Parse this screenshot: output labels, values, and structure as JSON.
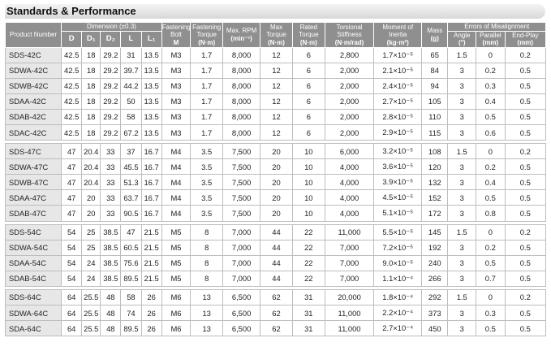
{
  "title": "Standards & Performance",
  "headers": {
    "product_number": "Product Number",
    "dimension": "Dimension (±0.3)",
    "d": "D",
    "d1": "D₁",
    "d2": "D₂",
    "l": "L",
    "l1": "L₁",
    "fastening_bolt": "Fastening Bolt",
    "fastening_bolt_unit": "M",
    "fastening_torque": "Fastening Torque",
    "fastening_torque_unit": "(N·m)",
    "max_rpm": "Max. RPM",
    "max_rpm_unit": "(min⁻¹)",
    "max_torque": "Max Torque",
    "max_torque_unit": "(N·m)",
    "rated_torque": "Rated Torque",
    "rated_torque_unit": "(N·m)",
    "torsional_stiffness": "Torsional Stiffness",
    "torsional_stiffness_unit": "(N·m/rad)",
    "moment_of_inertia": "Moment of Inertia",
    "moment_of_inertia_unit": "(kg·m²)",
    "mass": "Mass",
    "mass_unit": "(g)",
    "errors": "Errors of Misalignment",
    "angle": "Angle",
    "angle_unit": "(°)",
    "parallel": "Parallel",
    "parallel_unit": "(mm)",
    "end_play": "End-Play",
    "end_play_unit": "(mm)"
  },
  "groups": [
    {
      "rows": [
        [
          "SDS-42C",
          "42.5",
          "18",
          "29.2",
          "31",
          "13.5",
          "M3",
          "1.7",
          "8,000",
          "12",
          "6",
          "2,800",
          "1.7×10⁻⁵",
          "65",
          "1.5",
          "0",
          "0.2"
        ],
        [
          "SDWA-42C",
          "42.5",
          "18",
          "29.2",
          "39.7",
          "13.5",
          "M3",
          "1.7",
          "8,000",
          "12",
          "6",
          "2,000",
          "2.1×10⁻⁵",
          "84",
          "3",
          "0.2",
          "0.5"
        ],
        [
          "SDWB-42C",
          "42.5",
          "18",
          "29.2",
          "44.2",
          "13.5",
          "M3",
          "1.7",
          "8,000",
          "12",
          "6",
          "2,000",
          "2.4×10⁻⁵",
          "94",
          "3",
          "0.3",
          "0.5"
        ],
        [
          "SDAA-42C",
          "42.5",
          "18",
          "29.2",
          "50",
          "13.5",
          "M3",
          "1.7",
          "8,000",
          "12",
          "6",
          "2,000",
          "2.7×10⁻⁵",
          "105",
          "3",
          "0.4",
          "0.5"
        ],
        [
          "SDAB-42C",
          "42.5",
          "18",
          "29.2",
          "58",
          "13.5",
          "M3",
          "1.7",
          "8,000",
          "12",
          "6",
          "2,000",
          "2.8×10⁻⁵",
          "110",
          "3",
          "0.5",
          "0.5"
        ],
        [
          "SDAC-42C",
          "42.5",
          "18",
          "29.2",
          "67.2",
          "13.5",
          "M3",
          "1.7",
          "8,000",
          "12",
          "6",
          "2,000",
          "2.9×10⁻⁵",
          "115",
          "3",
          "0.6",
          "0.5"
        ]
      ]
    },
    {
      "rows": [
        [
          "SDS-47C",
          "47",
          "20.4",
          "33",
          "37",
          "16.7",
          "M4",
          "3.5",
          "7,500",
          "20",
          "10",
          "6,000",
          "3.2×10⁻⁵",
          "108",
          "1.5",
          "0",
          "0.2"
        ],
        [
          "SDWA-47C",
          "47",
          "20.4",
          "33",
          "45.5",
          "16.7",
          "M4",
          "3.5",
          "7,500",
          "20",
          "10",
          "4,000",
          "3.6×10⁻⁵",
          "120",
          "3",
          "0.2",
          "0.5"
        ],
        [
          "SDWB-47C",
          "47",
          "20.4",
          "33",
          "51.3",
          "16.7",
          "M4",
          "3.5",
          "7,500",
          "20",
          "10",
          "4,000",
          "3.9×10⁻⁵",
          "132",
          "3",
          "0.4",
          "0.5"
        ],
        [
          "SDAA-47C",
          "47",
          "20",
          "33",
          "63.7",
          "16.7",
          "M4",
          "3.5",
          "7,500",
          "20",
          "10",
          "4,000",
          "4.5×10⁻⁵",
          "152",
          "3",
          "0.5",
          "0.5"
        ],
        [
          "SDAB-47C",
          "47",
          "20",
          "33",
          "90.5",
          "16.7",
          "M4",
          "3.5",
          "7,500",
          "20",
          "10",
          "4,000",
          "5.1×10⁻⁵",
          "172",
          "3",
          "0.8",
          "0.5"
        ]
      ]
    },
    {
      "rows": [
        [
          "SDS-54C",
          "54",
          "25",
          "38.5",
          "47",
          "21.5",
          "M5",
          "8",
          "7,000",
          "44",
          "22",
          "11,000",
          "5.5×10⁻⁵",
          "145",
          "1.5",
          "0",
          "0.2"
        ],
        [
          "SDWA-54C",
          "54",
          "25",
          "38.5",
          "60.5",
          "21.5",
          "M5",
          "8",
          "7,000",
          "44",
          "22",
          "7,000",
          "7.2×10⁻⁵",
          "192",
          "3",
          "0.2",
          "0.5"
        ],
        [
          "SDAA-54C",
          "54",
          "24",
          "38.5",
          "75.6",
          "21.5",
          "M5",
          "8",
          "7,000",
          "44",
          "22",
          "7,000",
          "9.0×10⁻⁵",
          "240",
          "3",
          "0.5",
          "0.5"
        ],
        [
          "SDAB-54C",
          "54",
          "24",
          "38.5",
          "89.5",
          "21.5",
          "M5",
          "8",
          "7,000",
          "44",
          "22",
          "7,000",
          "1.1×10⁻⁴",
          "266",
          "3",
          "0.7",
          "0.5"
        ]
      ]
    },
    {
      "rows": [
        [
          "SDS-64C",
          "64",
          "25.5",
          "48",
          "58",
          "26",
          "M6",
          "13",
          "6,500",
          "62",
          "31",
          "20,000",
          "1.8×10⁻⁴",
          "292",
          "1.5",
          "0",
          "0.2"
        ],
        [
          "SDWA-64C",
          "64",
          "25.5",
          "48",
          "74",
          "26",
          "M6",
          "13",
          "6,500",
          "62",
          "31",
          "11,000",
          "2.2×10⁻⁴",
          "373",
          "3",
          "0.3",
          "0.5"
        ],
        [
          "SDA-64C",
          "64",
          "25.5",
          "48",
          "89.5",
          "26",
          "M6",
          "13",
          "6,500",
          "62",
          "31",
          "11,000",
          "2.7×10⁻⁴",
          "450",
          "3",
          "0.5",
          "0.5"
        ]
      ]
    }
  ]
}
